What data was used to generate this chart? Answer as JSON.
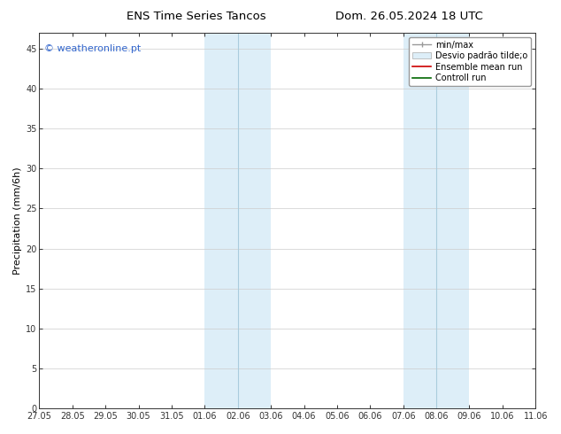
{
  "title_left": "ENS Time Series Tancos",
  "title_right": "Dom. 26.05.2024 18 UTC",
  "ylabel": "Precipitation (mm/6h)",
  "xlabel_ticks": [
    "27.05",
    "28.05",
    "29.05",
    "30.05",
    "31.05",
    "01.06",
    "02.06",
    "03.06",
    "04.06",
    "05.06",
    "06.06",
    "07.06",
    "08.06",
    "09.06",
    "10.06",
    "11.06"
  ],
  "xlim": [
    0,
    15
  ],
  "ylim": [
    0,
    47
  ],
  "yticks": [
    0,
    5,
    10,
    15,
    20,
    25,
    30,
    35,
    40,
    45
  ],
  "shaded_bands": [
    {
      "x_start": 5,
      "x_end": 6,
      "color": "#ddeef8"
    },
    {
      "x_start": 6,
      "x_end": 7,
      "color": "#ddeef8"
    },
    {
      "x_start": 11,
      "x_end": 12,
      "color": "#ddeef8"
    },
    {
      "x_start": 12,
      "x_end": 13,
      "color": "#ddeef8"
    }
  ],
  "divider_lines": [
    {
      "x": 6,
      "color": "#aaccdd",
      "lw": 0.8
    },
    {
      "x": 12,
      "color": "#aaccdd",
      "lw": 0.8
    }
  ],
  "watermark_text": "© weatheronline.pt",
  "watermark_color": "#3366cc",
  "bg_color": "#ffffff",
  "grid_color": "#cccccc",
  "tick_fontsize": 7.0,
  "title_fontsize": 9.5,
  "legend_fontsize": 7.0
}
